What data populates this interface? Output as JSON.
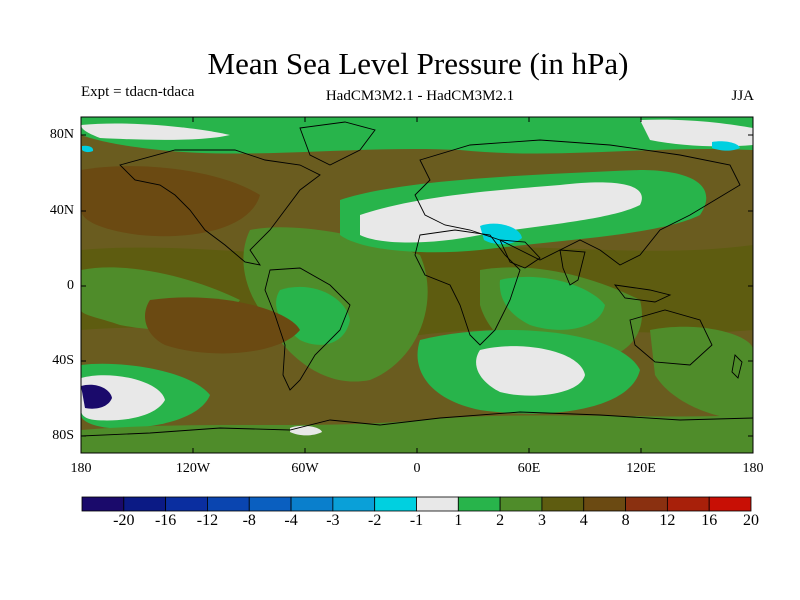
{
  "title": "Mean Sea Level Pressure (in hPa)",
  "experiment": "Expt = tdacn-tdaca",
  "models": "HadCM3M2.1 - HadCM3M2.1",
  "season": "JJA",
  "lat_ticks": [
    "80N",
    "40N",
    "0",
    "40S",
    "80S"
  ],
  "lon_ticks": [
    "180",
    "120W",
    "60W",
    "0",
    "60E",
    "120E",
    "180"
  ],
  "colorbar": {
    "labels": [
      "-20",
      "-16",
      "-12",
      "-8",
      "-4",
      "-3",
      "-2",
      "-1",
      "1",
      "2",
      "3",
      "4",
      "8",
      "12",
      "16",
      "20"
    ],
    "colors": [
      "#1a0a6b",
      "#0b1a85",
      "#0a2ea0",
      "#0a45b0",
      "#0a5fc0",
      "#0a7fcc",
      "#0aa0d8",
      "#00d0e0",
      "#e8e8e8",
      "#28b44b",
      "#4f8c2a",
      "#5e5c10",
      "#6b4a12",
      "#8a3010",
      "#a8200a",
      "#c80f05"
    ]
  },
  "map_colors": {
    "ocean_base": "#6a5c1f",
    "land_base": "#4f7a28",
    "mid_brown": "#6b4a12",
    "olive": "#5e5c10",
    "green_mid": "#4f8c2a",
    "bright_green": "#28b44b",
    "white": "#e8e8e8",
    "cyan": "#00d0e0",
    "navy": "#1a0a6b",
    "coast": "#000000"
  }
}
